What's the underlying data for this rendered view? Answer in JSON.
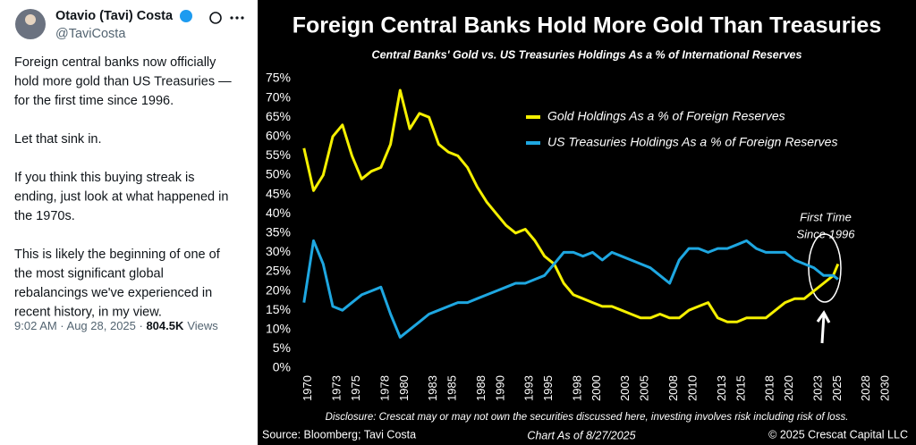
{
  "tweet": {
    "name": "Otavio (Tavi) Costa",
    "handle": "@TaviCosta",
    "paragraphs": [
      [
        "Foreign central banks now officially",
        "hold more gold than US Treasuries —",
        "for the first time since 1996."
      ],
      [
        "Let that sink in."
      ],
      [
        "If you think this buying streak is",
        "ending, just look at what happened in",
        "the 1970s."
      ],
      [
        "This is likely the beginning of one of",
        "the most significant global",
        "rebalancings we've experienced in",
        "recent history, in my view."
      ]
    ],
    "timestamp": "9:02 AM · Aug 28, 2025 · ",
    "views": "804.5K",
    "views_label": "Views"
  },
  "chart_data": {
    "type": "line",
    "title": "Foreign Central Banks Hold More Gold Than Treasuries",
    "subtitle": "Central Banks' Gold vs. US Treasuries Holdings As a % of International Reserves",
    "x": [
      1970,
      1971,
      1972,
      1973,
      1974,
      1975,
      1976,
      1977,
      1978,
      1979,
      1980,
      1981,
      1982,
      1983,
      1984,
      1985,
      1986,
      1987,
      1988,
      1989,
      1990,
      1991,
      1992,
      1993,
      1994,
      1995,
      1996,
      1997,
      1998,
      1999,
      2000,
      2001,
      2002,
      2003,
      2004,
      2005,
      2006,
      2007,
      2008,
      2009,
      2010,
      2011,
      2012,
      2013,
      2014,
      2015,
      2016,
      2017,
      2018,
      2019,
      2020,
      2021,
      2022,
      2023,
      2024,
      2025,
      2025.5
    ],
    "series": [
      {
        "name": "Gold Holdings As a % of Foreign Reserves",
        "color": "#f5f000",
        "values": [
          57,
          46,
          50,
          60,
          63,
          55,
          49,
          51,
          52,
          58,
          72,
          62,
          66,
          65,
          58,
          56,
          55,
          52,
          47,
          43,
          40,
          37,
          35,
          36,
          33,
          29,
          27,
          22,
          19,
          18,
          17,
          16,
          16,
          15,
          14,
          13,
          13,
          14,
          13,
          13,
          15,
          16,
          17,
          13,
          12,
          12,
          13,
          13,
          13,
          15,
          17,
          18,
          18,
          20,
          22,
          24,
          27
        ]
      },
      {
        "name": "US Treasuries Holdings As a % of Foreign Reserves",
        "color": "#1ea7e1",
        "values": [
          17,
          33,
          27,
          16,
          15,
          17,
          19,
          20,
          21,
          14,
          8,
          10,
          12,
          14,
          15,
          16,
          17,
          17,
          18,
          19,
          20,
          21,
          22,
          22,
          23,
          24,
          27,
          30,
          30,
          29,
          30,
          28,
          30,
          29,
          28,
          27,
          26,
          24,
          22,
          28,
          31,
          31,
          30,
          31,
          31,
          32,
          33,
          31,
          30,
          30,
          30,
          28,
          27,
          26,
          24,
          24,
          23
        ]
      }
    ],
    "xlim": [
      1969,
      2031
    ],
    "xticks": [
      1970,
      1973,
      1975,
      1978,
      1980,
      1983,
      1985,
      1988,
      1990,
      1993,
      1995,
      1998,
      2000,
      2003,
      2005,
      2008,
      2010,
      2013,
      2015,
      2018,
      2020,
      2023,
      2025,
      2028,
      2030
    ],
    "ylim": [
      0,
      78
    ],
    "yticks": [
      {
        "value": 0,
        "label": "0%"
      },
      {
        "value": 5,
        "label": "5%"
      },
      {
        "value": 10,
        "label": "10%"
      },
      {
        "value": 15,
        "label": "15%"
      },
      {
        "value": 20,
        "label": "20%"
      },
      {
        "value": 25,
        "label": "25%"
      },
      {
        "value": 30,
        "label": "30%"
      },
      {
        "value": 35,
        "label": "35%"
      },
      {
        "value": 40,
        "label": "40%"
      },
      {
        "value": 45,
        "label": "45%"
      },
      {
        "value": 50,
        "label": "50%"
      },
      {
        "value": 55,
        "label": "55%"
      },
      {
        "value": 60,
        "label": "60%"
      },
      {
        "value": 65,
        "label": "65%"
      },
      {
        "value": 70,
        "label": "70%"
      },
      {
        "value": 75,
        "label": "75%"
      }
    ],
    "grid": false,
    "legend": "upper right",
    "annotation": [
      "First Time",
      "Since 1996"
    ],
    "disclosure": "Disclosure: Crescat may or may not own the securities discussed here, investing involves risk including risk of loss.",
    "source": "Source: Bloomberg; Tavi Costa",
    "chart_date": "Chart As of 8/27/2025",
    "copyright": "© 2025 Crescat Capital LLC"
  }
}
